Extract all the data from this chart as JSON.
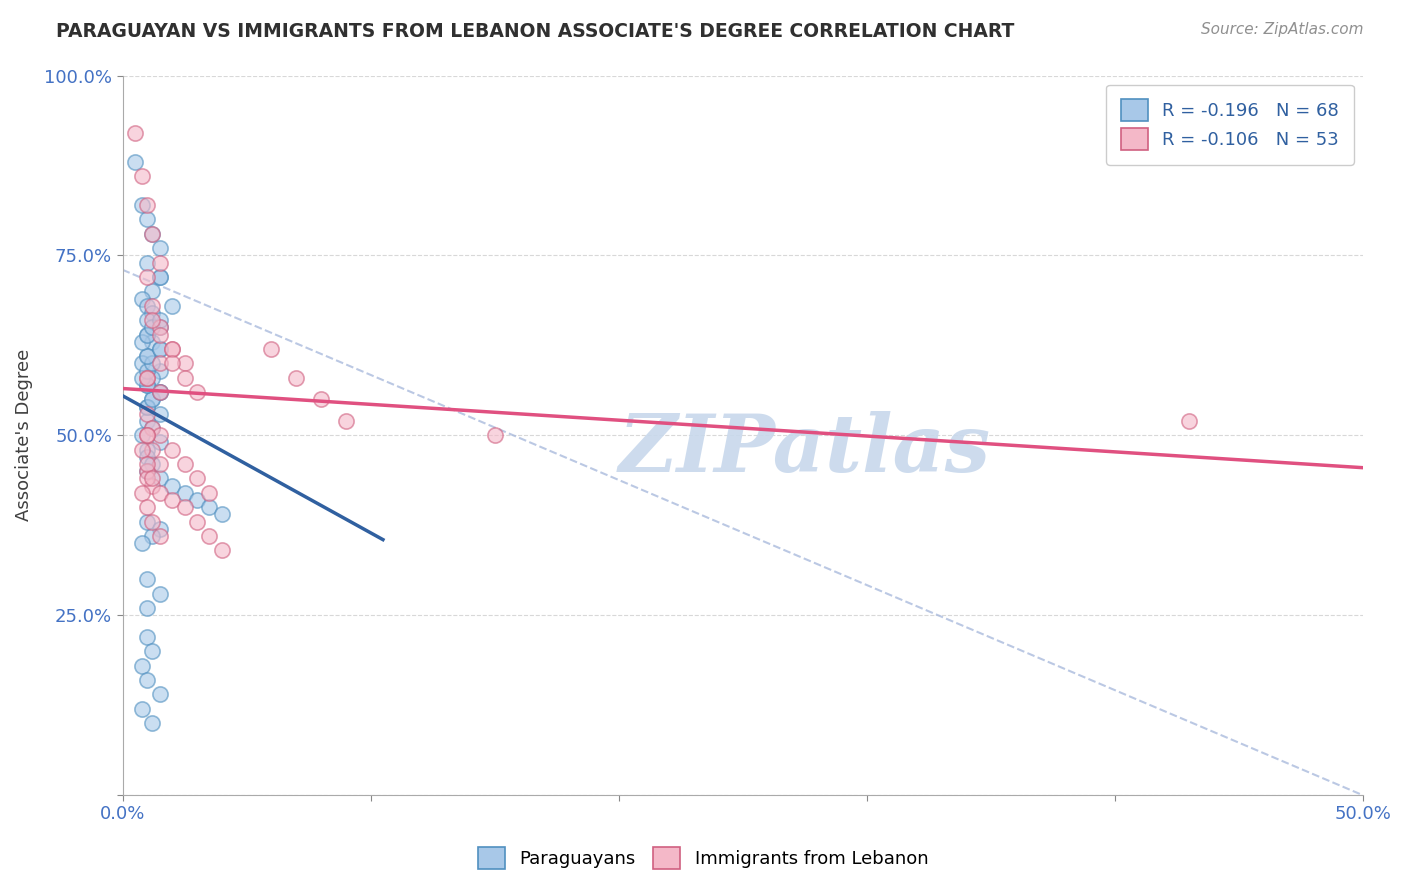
{
  "title": "PARAGUAYAN VS IMMIGRANTS FROM LEBANON ASSOCIATE'S DEGREE CORRELATION CHART",
  "source_text": "Source: ZipAtlas.com",
  "ylabel": "Associate's Degree",
  "xlabel_legend1": "Paraguayans",
  "xlabel_legend2": "Immigrants from Lebanon",
  "legend_blue_label": "R = -0.196   N = 68",
  "legend_pink_label": "R = -0.106   N = 53",
  "x_min": 0.0,
  "x_max": 0.5,
  "y_min": 0.0,
  "y_max": 1.0,
  "x_ticks": [
    0.0,
    0.1,
    0.2,
    0.3,
    0.4,
    0.5
  ],
  "x_tick_labels_bottom": [
    "0.0%",
    "",
    "",
    "",
    "",
    "50.0%"
  ],
  "y_ticks": [
    0.0,
    0.25,
    0.5,
    0.75,
    1.0
  ],
  "y_tick_labels": [
    "",
    "25.0%",
    "50.0%",
    "75.0%",
    "100.0%"
  ],
  "blue_color": "#a8c8e8",
  "pink_color": "#f4b8c8",
  "blue_line_color": "#3060a0",
  "pink_line_color": "#e05080",
  "scatter_alpha": 0.6,
  "scatter_size": 120,
  "watermark": "ZIPatlas",
  "watermark_color": "#c8d8ec",
  "blue_scatter_x": [
    0.005,
    0.008,
    0.01,
    0.012,
    0.015,
    0.01,
    0.015,
    0.012,
    0.02,
    0.015,
    0.008,
    0.01,
    0.012,
    0.01,
    0.015,
    0.01,
    0.012,
    0.015,
    0.01,
    0.008,
    0.015,
    0.012,
    0.01,
    0.015,
    0.012,
    0.01,
    0.015,
    0.01,
    0.012,
    0.008,
    0.015,
    0.01,
    0.01,
    0.012,
    0.01,
    0.015,
    0.02,
    0.025,
    0.03,
    0.035,
    0.04,
    0.01,
    0.015,
    0.012,
    0.008,
    0.01,
    0.012,
    0.015,
    0.01,
    0.008,
    0.01,
    0.012,
    0.01,
    0.015,
    0.008,
    0.01,
    0.012,
    0.015,
    0.01,
    0.012,
    0.008,
    0.01,
    0.015,
    0.008,
    0.012,
    0.01,
    0.015,
    0.01
  ],
  "blue_scatter_y": [
    0.88,
    0.82,
    0.8,
    0.78,
    0.76,
    0.74,
    0.72,
    0.7,
    0.68,
    0.72,
    0.69,
    0.68,
    0.67,
    0.66,
    0.65,
    0.64,
    0.63,
    0.62,
    0.61,
    0.6,
    0.59,
    0.58,
    0.57,
    0.56,
    0.55,
    0.54,
    0.53,
    0.52,
    0.51,
    0.5,
    0.49,
    0.48,
    0.47,
    0.46,
    0.45,
    0.44,
    0.43,
    0.42,
    0.41,
    0.4,
    0.39,
    0.38,
    0.37,
    0.36,
    0.35,
    0.54,
    0.55,
    0.56,
    0.57,
    0.58,
    0.59,
    0.6,
    0.61,
    0.62,
    0.63,
    0.64,
    0.65,
    0.66,
    0.22,
    0.2,
    0.18,
    0.16,
    0.14,
    0.12,
    0.1,
    0.3,
    0.28,
    0.26
  ],
  "pink_scatter_x": [
    0.005,
    0.008,
    0.01,
    0.012,
    0.015,
    0.01,
    0.012,
    0.015,
    0.02,
    0.015,
    0.01,
    0.012,
    0.015,
    0.02,
    0.025,
    0.01,
    0.015,
    0.02,
    0.025,
    0.03,
    0.06,
    0.07,
    0.08,
    0.09,
    0.15,
    0.01,
    0.012,
    0.015,
    0.02,
    0.025,
    0.03,
    0.035,
    0.01,
    0.012,
    0.015,
    0.02,
    0.025,
    0.03,
    0.035,
    0.04,
    0.01,
    0.012,
    0.015,
    0.01,
    0.008,
    0.01,
    0.012,
    0.015,
    0.01,
    0.008,
    0.01,
    0.012,
    0.43
  ],
  "pink_scatter_y": [
    0.92,
    0.86,
    0.82,
    0.78,
    0.74,
    0.72,
    0.68,
    0.65,
    0.62,
    0.6,
    0.58,
    0.66,
    0.64,
    0.62,
    0.6,
    0.58,
    0.56,
    0.6,
    0.58,
    0.56,
    0.62,
    0.58,
    0.55,
    0.52,
    0.5,
    0.53,
    0.51,
    0.5,
    0.48,
    0.46,
    0.44,
    0.42,
    0.45,
    0.43,
    0.42,
    0.41,
    0.4,
    0.38,
    0.36,
    0.34,
    0.5,
    0.48,
    0.46,
    0.44,
    0.42,
    0.4,
    0.38,
    0.36,
    0.5,
    0.48,
    0.46,
    0.44,
    0.52
  ],
  "blue_line_x": [
    0.0,
    0.105
  ],
  "blue_line_y": [
    0.555,
    0.355
  ],
  "pink_line_x": [
    0.0,
    0.5
  ],
  "pink_line_y": [
    0.565,
    0.455
  ],
  "ref_line_x": [
    0.0,
    0.5
  ],
  "ref_line_y": [
    0.73,
    0.0
  ],
  "background_color": "#ffffff",
  "grid_color": "#d8d8d8",
  "tick_color": "#4472c4",
  "title_color": "#303030",
  "source_color": "#909090"
}
